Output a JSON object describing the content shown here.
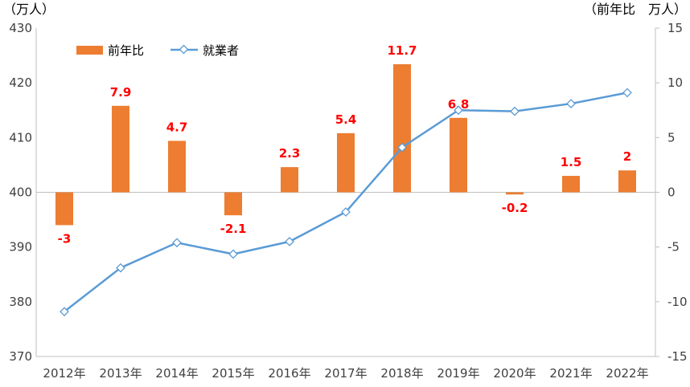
{
  "chart_data": {
    "type": "bar+line",
    "categories": [
      "2012年",
      "2013年",
      "2014年",
      "2015年",
      "2016年",
      "2017年",
      "2018年",
      "2019年",
      "2020年",
      "2021年",
      "2022年"
    ],
    "series": [
      {
        "name": "前年比",
        "type": "bar",
        "axis": "right",
        "values": [
          -3,
          7.9,
          4.7,
          -2.1,
          2.3,
          5.4,
          11.7,
          6.8,
          -0.2,
          1.5,
          2
        ],
        "labels": [
          "-3",
          "7.9",
          "4.7",
          "-2.1",
          "2.3",
          "5.4",
          "11.7",
          "6.8",
          "-0.2",
          "1.5",
          "2"
        ],
        "color": "#ed7d31"
      },
      {
        "name": "就業者",
        "type": "line",
        "axis": "left",
        "values": [
          378.2,
          386.2,
          390.8,
          388.7,
          391.0,
          396.4,
          408.2,
          415.0,
          414.8,
          416.2,
          418.2
        ],
        "color": "#5b9bd5"
      }
    ],
    "left_axis": {
      "unit": "（万人）",
      "ylim": [
        370,
        430
      ],
      "ticks": [
        370,
        380,
        390,
        400,
        410,
        420,
        430
      ]
    },
    "right_axis": {
      "unit": "（前年比　万人）",
      "ylim": [
        -15,
        15
      ],
      "ticks": [
        -15,
        -10,
        -5,
        0,
        5,
        10,
        15
      ]
    },
    "legend_position": "top-left",
    "grid": false
  }
}
